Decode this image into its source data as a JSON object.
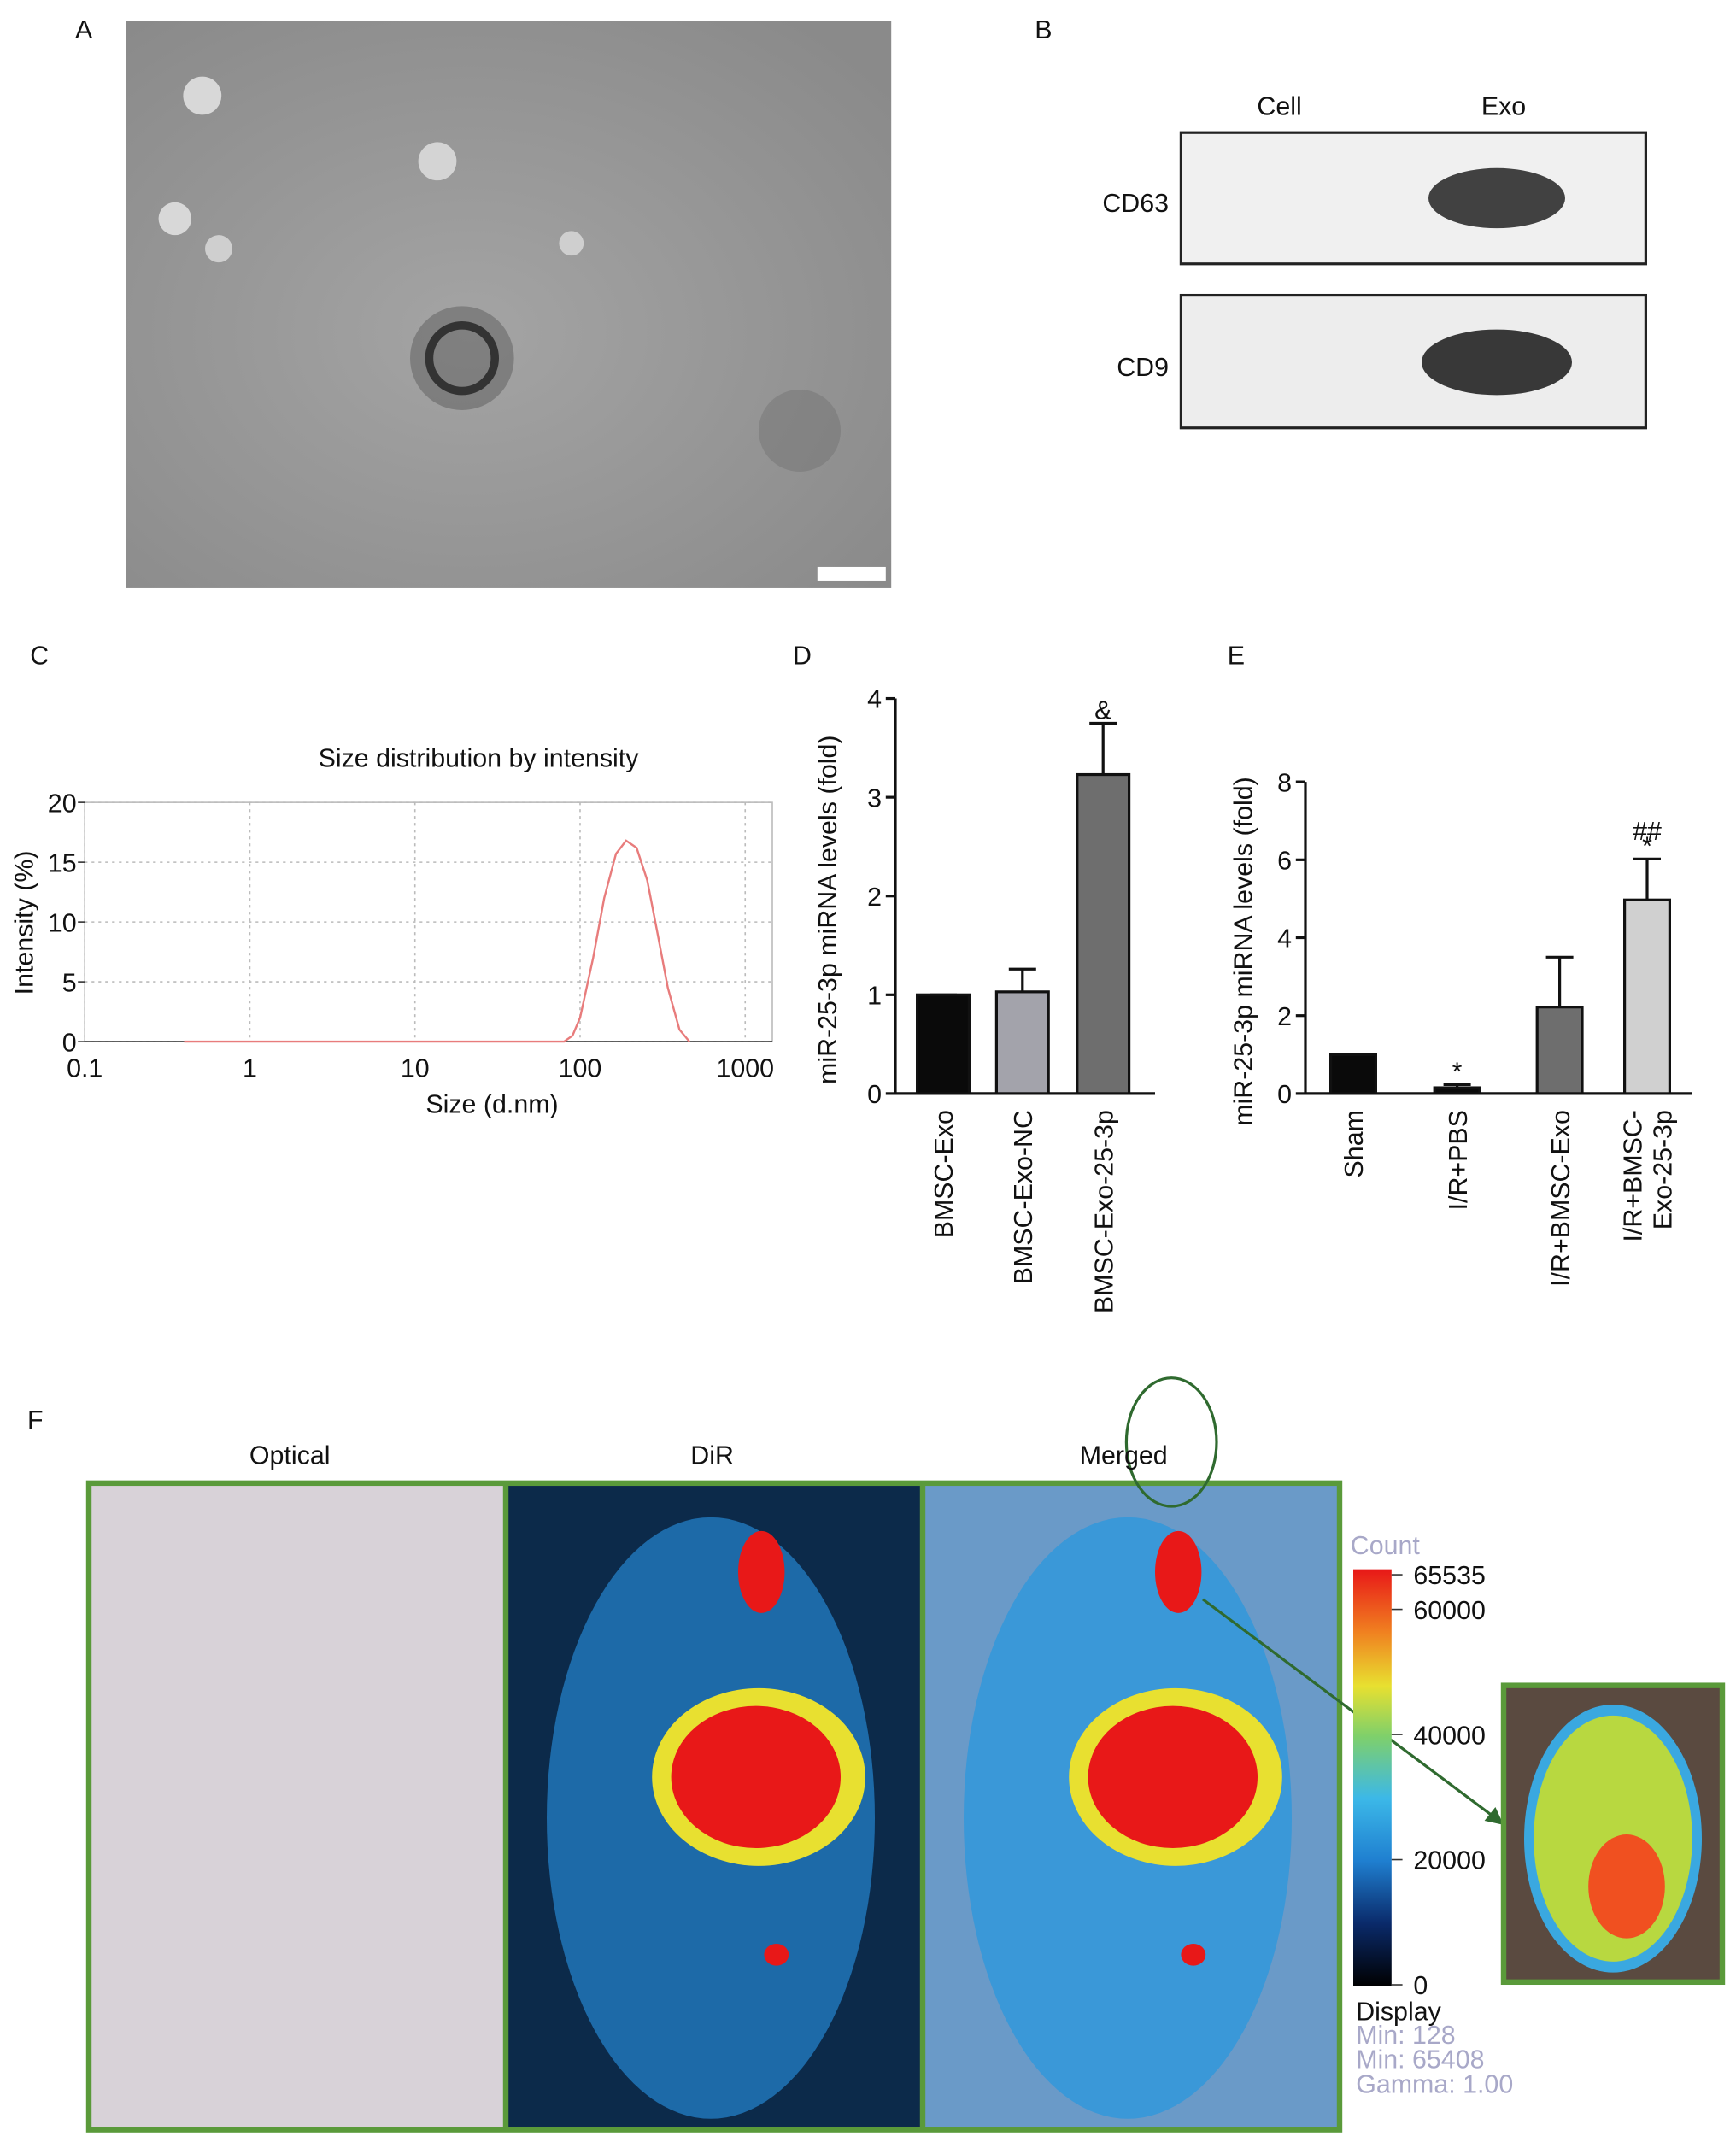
{
  "panels": [
    "A",
    "B",
    "C",
    "D",
    "E",
    "F"
  ],
  "blot": {
    "columns": [
      "Cell",
      "Exo"
    ],
    "rows": [
      "CD63",
      "CD9"
    ]
  },
  "imaging": {
    "columns": [
      "Optical",
      "DiR",
      "Merged"
    ],
    "colorbar": {
      "title": "Count",
      "ticks": [
        0,
        20000,
        40000,
        60000,
        65535
      ],
      "lim": [
        0,
        65535
      ]
    },
    "display": {
      "title": "Display",
      "lines": [
        "Min: 128",
        "Min: 65408",
        "Gamma: 1.00"
      ]
    }
  },
  "chart_data": [
    {
      "type": "line",
      "title": "Size distribution by intensity",
      "xlabel": "Size (d.nm)",
      "ylabel": "Intensity (%)",
      "xscale": "log",
      "xlim": [
        0.1,
        1460
      ],
      "xticks": [
        0.1,
        1,
        10,
        100,
        1000
      ],
      "ylim": [
        0,
        20
      ],
      "yticks": [
        0,
        5,
        10,
        15,
        20
      ],
      "grid": true,
      "x": [
        0.4,
        0.6,
        1,
        1.5,
        2.5,
        4,
        6,
        10,
        15,
        25,
        40,
        60,
        80,
        90,
        100,
        120,
        140,
        165,
        190,
        220,
        255,
        295,
        340,
        400,
        460
      ],
      "series": [
        {
          "name": "Intensity",
          "color": "#e87c7c",
          "values": [
            0,
            0,
            0,
            0,
            0,
            0,
            0,
            0,
            0,
            0,
            0,
            0,
            0,
            0.5,
            2,
            7,
            12,
            15.7,
            16.8,
            16.2,
            13.5,
            9,
            4.5,
            1,
            0
          ]
        }
      ]
    },
    {
      "type": "bar",
      "ylabel": "miR-25-3p miRNA levels (fold)",
      "categories": [
        "BMSC-Exo",
        "BMSC-Exo-NC",
        "BMSC-Exo-25-3p"
      ],
      "values": [
        1,
        1.03,
        3.23
      ],
      "errors": [
        0,
        0.23,
        0.52
      ],
      "colors": [
        "#0a0a0a",
        "#a3a3ab",
        "#6e6e6e"
      ],
      "ylim": [
        0,
        4
      ],
      "yticks": [
        0,
        1,
        2,
        3,
        4
      ],
      "annotations": [
        {
          "index": 2,
          "text": "&"
        }
      ]
    },
    {
      "type": "bar",
      "ylabel": "miR-25-3p miRNA levels (fold)",
      "categories": [
        "Sham",
        "I/R+PBS",
        "I/R+BMSC-Exo",
        "I/R+BMSC-\nExo-25-3p"
      ],
      "values": [
        1,
        0.15,
        2.22,
        4.97
      ],
      "errors": [
        0,
        0.08,
        1.28,
        1.05
      ],
      "colors": [
        "#0a0a0a",
        "#0a0a0a",
        "#6e6e6e",
        "#d0d0d0"
      ],
      "ylim": [
        0,
        8
      ],
      "yticks": [
        0,
        2,
        4,
        6,
        8
      ],
      "annotations": [
        {
          "index": 1,
          "text": "*"
        },
        {
          "index": 3,
          "text": "*"
        },
        {
          "index": 3,
          "text": "##"
        }
      ]
    }
  ]
}
